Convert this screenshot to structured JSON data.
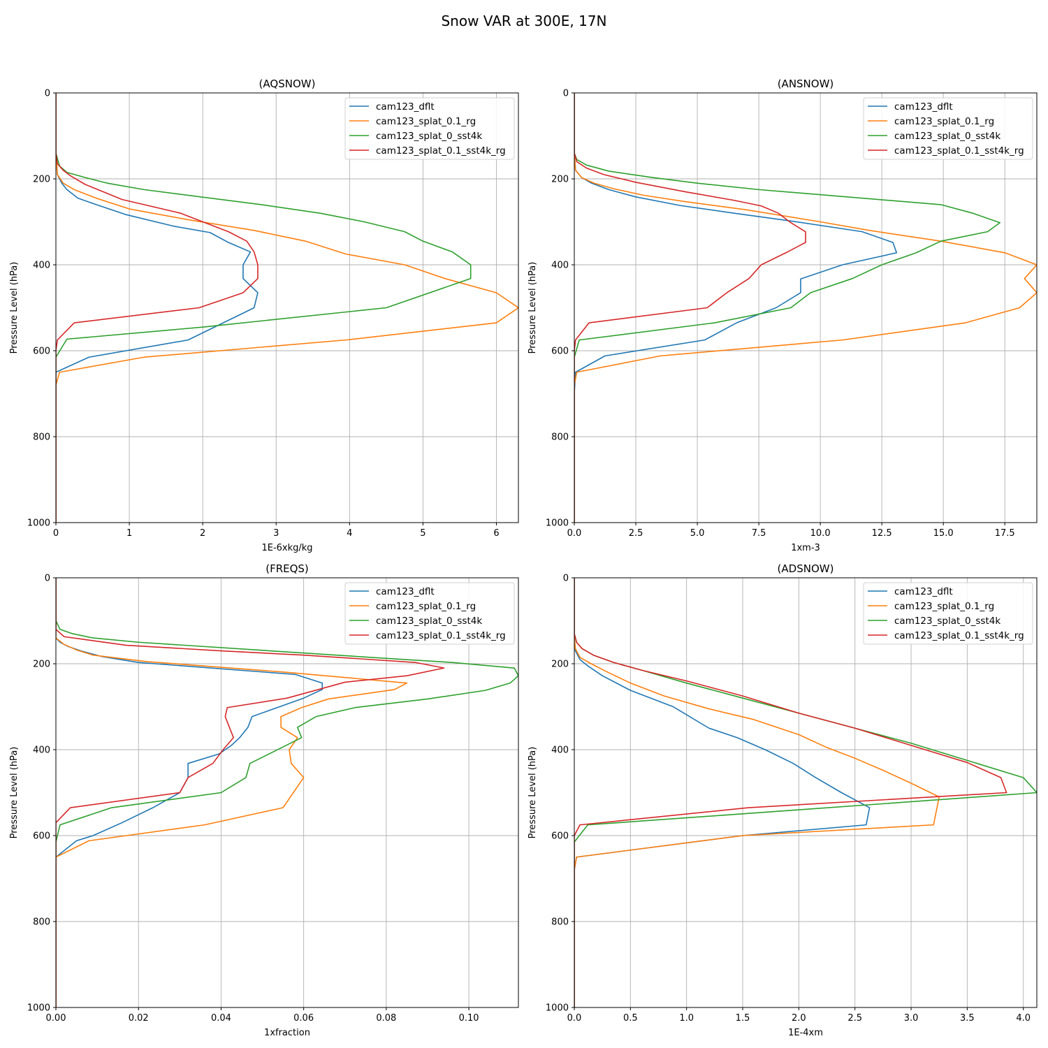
{
  "suptitle": "Snow VAR at 300E, 17N",
  "colors": {
    "s0": "#1f77b4",
    "s1": "#ff7f0e",
    "s2": "#2ca02c",
    "s3": "#d62728"
  },
  "chart_data": [
    {
      "type": "line",
      "title": "(AQSNOW)",
      "xlabel": "1E-6xkg/kg",
      "ylabel": "Pressure Level (hPa)",
      "xlim": [
        0,
        6.3
      ],
      "ylim": [
        1000,
        0
      ],
      "xticks": [
        0,
        1,
        2,
        3,
        4,
        5,
        6
      ],
      "xtick_labels": [
        "0",
        "1",
        "2",
        "3",
        "4",
        "5",
        "6"
      ],
      "yticks": [
        0,
        200,
        400,
        600,
        800,
        1000
      ],
      "ytick_labels": [
        "0",
        "200",
        "400",
        "600",
        "800",
        "1000"
      ],
      "grid": true,
      "legend": "upper-right",
      "series": [
        {
          "name": "cam123_dflt",
          "x": [
            0,
            0,
            0.02,
            0.08,
            0.15,
            0.3,
            0.55,
            0.95,
            1.6,
            2.1,
            2.35,
            2.65,
            2.55,
            2.55,
            2.75,
            2.7,
            1.8,
            0.45,
            0,
            0,
            0
          ],
          "y": [
            0,
            140,
            190,
            210,
            225,
            245,
            260,
            283,
            310,
            325,
            348,
            370,
            400,
            432,
            465,
            500,
            575,
            615,
            650,
            700,
            1000
          ]
        },
        {
          "name": "cam123_splat_0.1_rg",
          "x": [
            0,
            0,
            0.02,
            0.1,
            0.25,
            0.55,
            1.0,
            1.8,
            2.7,
            3.4,
            3.95,
            4.75,
            5.3,
            6.0,
            6.3,
            6.0,
            3.95,
            1.2,
            0.05,
            0,
            0
          ],
          "y": [
            0,
            140,
            190,
            210,
            225,
            245,
            270,
            295,
            320,
            345,
            375,
            400,
            432,
            465,
            500,
            535,
            575,
            615,
            650,
            680,
            1000
          ]
        },
        {
          "name": "cam123_splat_0_sst4k",
          "x": [
            0,
            0,
            0.05,
            0.15,
            0.4,
            0.7,
            1.2,
            2.8,
            3.6,
            4.2,
            4.75,
            5.0,
            5.4,
            5.65,
            5.65,
            4.5,
            2.0,
            0.15,
            0,
            0
          ],
          "y": [
            0,
            140,
            170,
            185,
            197,
            210,
            225,
            260,
            280,
            300,
            323,
            345,
            370,
            400,
            432,
            500,
            545,
            573,
            615,
            1000
          ]
        },
        {
          "name": "cam123_splat_0.1_sst4k_rg",
          "x": [
            0,
            0,
            0.02,
            0.1,
            0.2,
            0.4,
            0.9,
            1.7,
            2.0,
            2.35,
            2.6,
            2.7,
            2.75,
            2.75,
            2.55,
            1.95,
            0.25,
            0.02,
            0,
            0
          ],
          "y": [
            0,
            140,
            165,
            180,
            193,
            213,
            248,
            280,
            300,
            323,
            345,
            370,
            400,
            432,
            465,
            500,
            535,
            575,
            600,
            1000
          ]
        }
      ]
    },
    {
      "type": "line",
      "title": "(ANSNOW)",
      "xlabel": "1xm-3",
      "ylabel": "Pressure Level (hPa)",
      "xlim": [
        0,
        18.8
      ],
      "ylim": [
        1000,
        0
      ],
      "xticks": [
        0,
        2.5,
        5,
        7.5,
        10,
        12.5,
        15,
        17.5
      ],
      "xtick_labels": [
        "0.0",
        "2.5",
        "5.0",
        "7.5",
        "10.0",
        "12.5",
        "15.0",
        "17.5"
      ],
      "yticks": [
        0,
        200,
        400,
        600,
        800,
        1000
      ],
      "ytick_labels": [
        "0",
        "200",
        "400",
        "600",
        "800",
        "1000"
      ],
      "grid": true,
      "legend": "upper-right",
      "series": [
        {
          "name": "cam123_dflt",
          "x": [
            0,
            0,
            0.05,
            0.3,
            0.7,
            1.4,
            2.5,
            4.3,
            6.5,
            8.8,
            11.7,
            12.95,
            13.1,
            10.9,
            9.2,
            9.2,
            8.2,
            6.6,
            5.3,
            1.25,
            0.05,
            0,
            0
          ],
          "y": [
            0,
            140,
            180,
            197,
            210,
            225,
            242,
            262,
            280,
            298,
            323,
            348,
            372,
            400,
            433,
            465,
            500,
            535,
            575,
            612,
            650,
            700,
            1000
          ]
        },
        {
          "name": "cam123_splat_0.1_rg",
          "x": [
            0,
            0,
            0.05,
            0.3,
            0.8,
            1.6,
            2.8,
            4.5,
            7.0,
            10.0,
            12.0,
            14.9,
            17.5,
            18.8,
            18.3,
            18.8,
            18.1,
            15.9,
            10.9,
            3.5,
            0.1,
            0,
            0
          ],
          "y": [
            0,
            140,
            180,
            197,
            210,
            223,
            238,
            253,
            272,
            300,
            320,
            345,
            372,
            400,
            432,
            465,
            500,
            535,
            575,
            612,
            650,
            680,
            1000
          ]
        },
        {
          "name": "cam123_splat_0_sst4k",
          "x": [
            0,
            0,
            0.1,
            0.5,
            1.4,
            3.2,
            5.0,
            7.5,
            14.9,
            16.2,
            17.3,
            16.8,
            14.9,
            13.9,
            12.5,
            11.3,
            9.6,
            8.8,
            5.7,
            0.2,
            0,
            0
          ],
          "y": [
            0,
            140,
            155,
            168,
            182,
            197,
            210,
            225,
            260,
            280,
            302,
            323,
            345,
            372,
            400,
            432,
            465,
            500,
            535,
            575,
            615,
            1000
          ]
        },
        {
          "name": "cam123_splat_0.1_sst4k_rg",
          "x": [
            0,
            0,
            0.1,
            0.5,
            1.2,
            2.5,
            4.5,
            6.5,
            7.6,
            8.3,
            8.8,
            9.4,
            9.4,
            8.6,
            7.6,
            7.1,
            6.2,
            5.4,
            0.6,
            0.05,
            0,
            0
          ],
          "y": [
            0,
            140,
            160,
            175,
            190,
            208,
            230,
            250,
            263,
            280,
            302,
            323,
            348,
            372,
            400,
            432,
            465,
            500,
            535,
            575,
            600,
            1000
          ]
        }
      ]
    },
    {
      "type": "line",
      "title": "(FREQS)",
      "xlabel": "1xfraction",
      "ylabel": "Pressure Level (hPa)",
      "xlim": [
        0,
        0.112
      ],
      "ylim": [
        1000,
        0
      ],
      "xticks": [
        0,
        0.02,
        0.04,
        0.06,
        0.08,
        0.1
      ],
      "xtick_labels": [
        "0.00",
        "0.02",
        "0.04",
        "0.06",
        "0.08",
        "0.10"
      ],
      "yticks": [
        0,
        200,
        400,
        600,
        800,
        1000
      ],
      "ytick_labels": [
        "0",
        "200",
        "400",
        "600",
        "800",
        "1000"
      ],
      "grid": true,
      "legend": "upper-right",
      "series": [
        {
          "name": "cam123_dflt",
          "x": [
            0,
            0,
            0.001,
            0.003,
            0.006,
            0.011,
            0.02,
            0.058,
            0.0645,
            0.0645,
            0.06,
            0.0475,
            0.0465,
            0.0445,
            0.0425,
            0.0395,
            0.032,
            0.032,
            0.03,
            0.0235,
            0.016,
            0.009,
            0.005,
            0,
            0
          ],
          "y": [
            0,
            140,
            150,
            160,
            170,
            183,
            197,
            225,
            245,
            260,
            280,
            323,
            348,
            372,
            390,
            410,
            432,
            465,
            500,
            535,
            570,
            600,
            612,
            650,
            1000
          ]
        },
        {
          "name": "cam123_splat_0.1_rg",
          "x": [
            0,
            0,
            0.002,
            0.005,
            0.009,
            0.022,
            0.056,
            0.085,
            0.082,
            0.066,
            0.0595,
            0.0545,
            0.0545,
            0.0585,
            0.0565,
            0.057,
            0.06,
            0.055,
            0.036,
            0.008,
            0,
            0
          ],
          "y": [
            0,
            140,
            155,
            168,
            180,
            195,
            220,
            245,
            260,
            282,
            302,
            323,
            348,
            372,
            400,
            432,
            465,
            535,
            575,
            612,
            650,
            1000
          ]
        },
        {
          "name": "cam123_splat_0_sst4k",
          "x": [
            0,
            0,
            0.001,
            0.004,
            0.009,
            0.02,
            0.084,
            0.096,
            0.111,
            0.112,
            0.11,
            0.104,
            0.09,
            0.0725,
            0.063,
            0.0585,
            0.0595,
            0.047,
            0.046,
            0.04,
            0.0135,
            0.001,
            0,
            0
          ],
          "y": [
            0,
            100,
            120,
            130,
            140,
            150,
            190,
            197,
            210,
            228,
            245,
            262,
            282,
            302,
            323,
            348,
            372,
            432,
            465,
            500,
            535,
            575,
            615,
            1000
          ]
        },
        {
          "name": "cam123_splat_0.1_sst4k_rg",
          "x": [
            0,
            0,
            0.002,
            0.008,
            0.017,
            0.04,
            0.06,
            0.087,
            0.094,
            0.085,
            0.07,
            0.056,
            0.0415,
            0.041,
            0.043,
            0.0405,
            0.038,
            0.032,
            0.03,
            0.0035,
            0,
            0
          ],
          "y": [
            0,
            120,
            137,
            145,
            157,
            170,
            180,
            197,
            210,
            228,
            243,
            280,
            302,
            323,
            372,
            400,
            432,
            465,
            500,
            535,
            570,
            1000
          ]
        }
      ]
    },
    {
      "type": "line",
      "title": "(ADSNOW)",
      "xlabel": "1E-4xm",
      "ylabel": "Pressure Level (hPa)",
      "xlim": [
        0,
        4.12
      ],
      "ylim": [
        1000,
        0
      ],
      "xticks": [
        0,
        0.5,
        1,
        1.5,
        2,
        2.5,
        3,
        3.5,
        4
      ],
      "xtick_labels": [
        "0.0",
        "0.5",
        "1.0",
        "1.5",
        "2.0",
        "2.5",
        "3.0",
        "3.5",
        "4.0"
      ],
      "yticks": [
        0,
        200,
        400,
        600,
        800,
        1000
      ],
      "ytick_labels": [
        "0",
        "200",
        "400",
        "600",
        "800",
        "1000"
      ],
      "grid": true,
      "legend": "upper-right",
      "series": [
        {
          "name": "cam123_dflt",
          "x": [
            0,
            0,
            0.01,
            0.05,
            0.12,
            0.25,
            0.5,
            0.88,
            1.2,
            1.45,
            1.7,
            1.95,
            2.15,
            2.38,
            2.63,
            2.6,
            1.5,
            0.02,
            0,
            0
          ],
          "y": [
            0,
            140,
            170,
            190,
            205,
            228,
            262,
            300,
            350,
            372,
            400,
            432,
            465,
            500,
            535,
            575,
            600,
            650,
            680,
            1000
          ]
        },
        {
          "name": "cam123_splat_0.1_rg",
          "x": [
            0,
            0,
            0.01,
            0.05,
            0.15,
            0.3,
            0.5,
            0.8,
            1.2,
            1.6,
            2.0,
            2.25,
            2.5,
            2.75,
            3.0,
            3.25,
            3.2,
            1.5,
            0.02,
            0,
            0
          ],
          "y": [
            0,
            140,
            165,
            185,
            200,
            220,
            245,
            275,
            305,
            330,
            365,
            395,
            420,
            448,
            478,
            510,
            575,
            600,
            650,
            680,
            1000
          ]
        },
        {
          "name": "cam123_splat_0_sst4k",
          "x": [
            0,
            0,
            0.02,
            0.07,
            0.17,
            0.35,
            0.6,
            1.0,
            1.5,
            2.0,
            2.5,
            3.0,
            3.5,
            4.0,
            4.12,
            2.0,
            0.12,
            0,
            0
          ],
          "y": [
            0,
            130,
            150,
            165,
            180,
            197,
            215,
            245,
            280,
            315,
            350,
            385,
            425,
            465,
            500,
            540,
            575,
            615,
            1000
          ]
        },
        {
          "name": "cam123_splat_0.1_sst4k_rg",
          "x": [
            0,
            0,
            0.02,
            0.07,
            0.17,
            0.35,
            0.6,
            1.0,
            1.5,
            2.0,
            2.5,
            3.0,
            3.5,
            3.8,
            3.85,
            1.55,
            0.05,
            0,
            0
          ],
          "y": [
            0,
            130,
            150,
            165,
            180,
            197,
            215,
            240,
            275,
            315,
            350,
            390,
            430,
            465,
            500,
            535,
            575,
            600,
            1000
          ]
        }
      ]
    }
  ]
}
